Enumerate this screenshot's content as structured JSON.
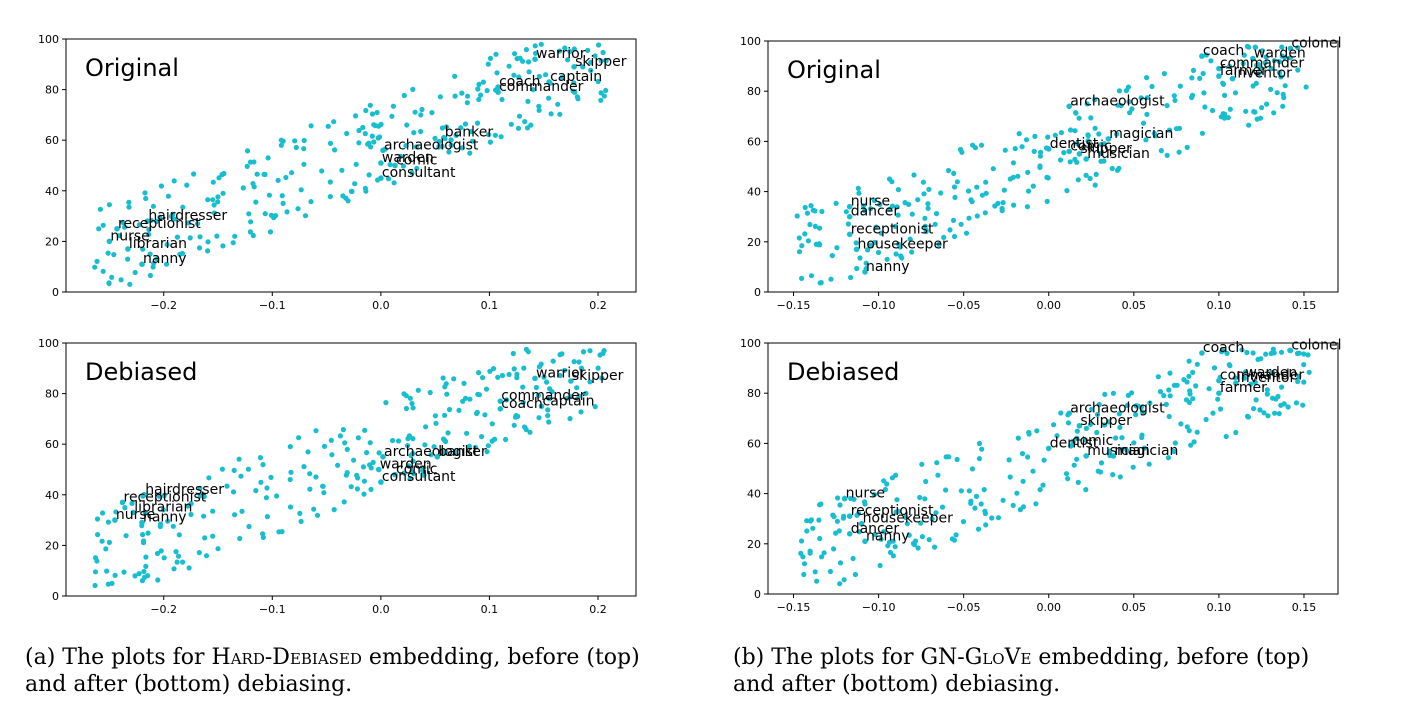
{
  "colors": {
    "point": "#17becf",
    "axis": "#000000"
  },
  "captions": [
    {
      "prefix": "(a) The plots for ",
      "name": "Hard-Debiased",
      "suffix": " embedding, before (top) and after (bottom) debiasing."
    },
    {
      "prefix": "(b) The plots for ",
      "name": "GN-GloVe",
      "suffix": " embedding, before (top) and after (bottom) debiasing."
    }
  ],
  "chart_data": [
    {
      "type": "scatter",
      "title": "Original",
      "xlim": [
        -0.29,
        0.235
      ],
      "ylim": [
        0,
        100
      ],
      "xticks": [
        -0.2,
        -0.1,
        0.0,
        0.1,
        0.2
      ],
      "xtick_labels": [
        "−0.2",
        "−0.1",
        "0.0",
        "0.1",
        "0.2"
      ],
      "yticks": [
        0,
        20,
        40,
        60,
        80,
        100
      ],
      "ytick_labels": [
        "0",
        "20",
        "40",
        "60",
        "80",
        "100"
      ],
      "labeled_points": [
        {
          "label": "warrior",
          "x": 0.142,
          "y": 92
        },
        {
          "label": "skipper",
          "x": 0.178,
          "y": 89
        },
        {
          "label": "captain",
          "x": 0.155,
          "y": 83
        },
        {
          "label": "coach",
          "x": 0.108,
          "y": 81
        },
        {
          "label": "commander",
          "x": 0.108,
          "y": 79
        },
        {
          "label": "banker",
          "x": 0.058,
          "y": 61
        },
        {
          "label": "archaeologist",
          "x": 0.002,
          "y": 56
        },
        {
          "label": "warden",
          "x": 0.0,
          "y": 51
        },
        {
          "label": "comic",
          "x": 0.013,
          "y": 50
        },
        {
          "label": "consultant",
          "x": 0.0,
          "y": 45
        },
        {
          "label": "hairdresser",
          "x": -0.215,
          "y": 28
        },
        {
          "label": "receptionist",
          "x": -0.243,
          "y": 25
        },
        {
          "label": "nurse",
          "x": -0.25,
          "y": 20
        },
        {
          "label": "librarian",
          "x": -0.233,
          "y": 17
        },
        {
          "label": "nanny",
          "x": -0.22,
          "y": 11
        }
      ]
    },
    {
      "type": "scatter",
      "title": "Debiased",
      "xlim": [
        -0.29,
        0.235
      ],
      "ylim": [
        0,
        100
      ],
      "xticks": [
        -0.2,
        -0.1,
        0.0,
        0.1,
        0.2
      ],
      "xtick_labels": [
        "−0.2",
        "−0.1",
        "0.0",
        "0.1",
        "0.2"
      ],
      "yticks": [
        0,
        20,
        40,
        60,
        80,
        100
      ],
      "ytick_labels": [
        "0",
        "20",
        "40",
        "60",
        "80",
        "100"
      ],
      "labeled_points": [
        {
          "label": "warrior",
          "x": 0.142,
          "y": 86
        },
        {
          "label": "skipper",
          "x": 0.175,
          "y": 85
        },
        {
          "label": "commander",
          "x": 0.11,
          "y": 77
        },
        {
          "label": "captain",
          "x": 0.148,
          "y": 75
        },
        {
          "label": "coach",
          "x": 0.11,
          "y": 74
        },
        {
          "label": "archaeologist",
          "x": 0.002,
          "y": 55
        },
        {
          "label": "banker",
          "x": 0.052,
          "y": 55
        },
        {
          "label": "warden",
          "x": -0.002,
          "y": 50
        },
        {
          "label": "comic",
          "x": 0.013,
          "y": 48
        },
        {
          "label": "consultant",
          "x": 0.0,
          "y": 45
        },
        {
          "label": "hairdresser",
          "x": -0.218,
          "y": 40
        },
        {
          "label": "receptionist",
          "x": -0.238,
          "y": 37
        },
        {
          "label": "librarian",
          "x": -0.228,
          "y": 33
        },
        {
          "label": "nurse",
          "x": -0.245,
          "y": 30
        },
        {
          "label": "nanny",
          "x": -0.22,
          "y": 29
        }
      ]
    },
    {
      "type": "scatter",
      "title": "Original",
      "xlim": [
        -0.165,
        0.17
      ],
      "ylim": [
        0,
        100
      ],
      "xticks": [
        -0.15,
        -0.1,
        -0.05,
        0.0,
        0.05,
        0.1,
        0.15
      ],
      "xtick_labels": [
        "−0.15",
        "−0.10",
        "−0.05",
        "0.00",
        "0.05",
        "0.10",
        "0.15"
      ],
      "yticks": [
        0,
        20,
        40,
        60,
        80,
        100
      ],
      "ytick_labels": [
        "0",
        "20",
        "40",
        "60",
        "80",
        "100"
      ],
      "labeled_points": [
        {
          "label": "colonel",
          "x": 0.142,
          "y": 97
        },
        {
          "label": "coach",
          "x": 0.09,
          "y": 94
        },
        {
          "label": "warden",
          "x": 0.12,
          "y": 93
        },
        {
          "label": "commander",
          "x": 0.1,
          "y": 89
        },
        {
          "label": "farmer",
          "x": 0.1,
          "y": 86
        },
        {
          "label": "inventor",
          "x": 0.108,
          "y": 85
        },
        {
          "label": "archaeologist",
          "x": 0.012,
          "y": 74
        },
        {
          "label": "magician",
          "x": 0.035,
          "y": 61
        },
        {
          "label": "dentist",
          "x": 0.0,
          "y": 57
        },
        {
          "label": "comic",
          "x": 0.012,
          "y": 56
        },
        {
          "label": "skipper",
          "x": 0.018,
          "y": 55
        },
        {
          "label": "musician",
          "x": 0.022,
          "y": 53
        },
        {
          "label": "nurse",
          "x": -0.117,
          "y": 34
        },
        {
          "label": "dancer",
          "x": -0.117,
          "y": 30
        },
        {
          "label": "receptionist",
          "x": -0.117,
          "y": 23
        },
        {
          "label": "housekeeper",
          "x": -0.113,
          "y": 17
        },
        {
          "label": "nanny",
          "x": -0.108,
          "y": 8
        }
      ]
    },
    {
      "type": "scatter",
      "title": "Debiased",
      "xlim": [
        -0.165,
        0.17
      ],
      "ylim": [
        0,
        100
      ],
      "xticks": [
        -0.15,
        -0.1,
        -0.05,
        0.0,
        0.05,
        0.1,
        0.15
      ],
      "xtick_labels": [
        "−0.15",
        "−0.10",
        "−0.05",
        "0.00",
        "0.05",
        "0.10",
        "0.15"
      ],
      "yticks": [
        0,
        20,
        40,
        60,
        80,
        100
      ],
      "ytick_labels": [
        "0",
        "20",
        "40",
        "60",
        "80",
        "100"
      ],
      "labeled_points": [
        {
          "label": "colonel",
          "x": 0.142,
          "y": 97
        },
        {
          "label": "coach",
          "x": 0.09,
          "y": 96
        },
        {
          "label": "warden",
          "x": 0.115,
          "y": 86
        },
        {
          "label": "commander",
          "x": 0.1,
          "y": 85
        },
        {
          "label": "inventor",
          "x": 0.11,
          "y": 84
        },
        {
          "label": "farmer",
          "x": 0.1,
          "y": 80
        },
        {
          "label": "archaeologist",
          "x": 0.012,
          "y": 72
        },
        {
          "label": "skipper",
          "x": 0.018,
          "y": 67
        },
        {
          "label": "comic",
          "x": 0.013,
          "y": 59
        },
        {
          "label": "dentist",
          "x": 0.0,
          "y": 58
        },
        {
          "label": "musician",
          "x": 0.022,
          "y": 55
        },
        {
          "label": "magician",
          "x": 0.038,
          "y": 55
        },
        {
          "label": "nurse",
          "x": -0.12,
          "y": 38
        },
        {
          "label": "receptionist",
          "x": -0.117,
          "y": 31
        },
        {
          "label": "housekeeper",
          "x": -0.11,
          "y": 28
        },
        {
          "label": "dancer",
          "x": -0.117,
          "y": 24
        },
        {
          "label": "nanny",
          "x": -0.108,
          "y": 21
        }
      ]
    }
  ]
}
